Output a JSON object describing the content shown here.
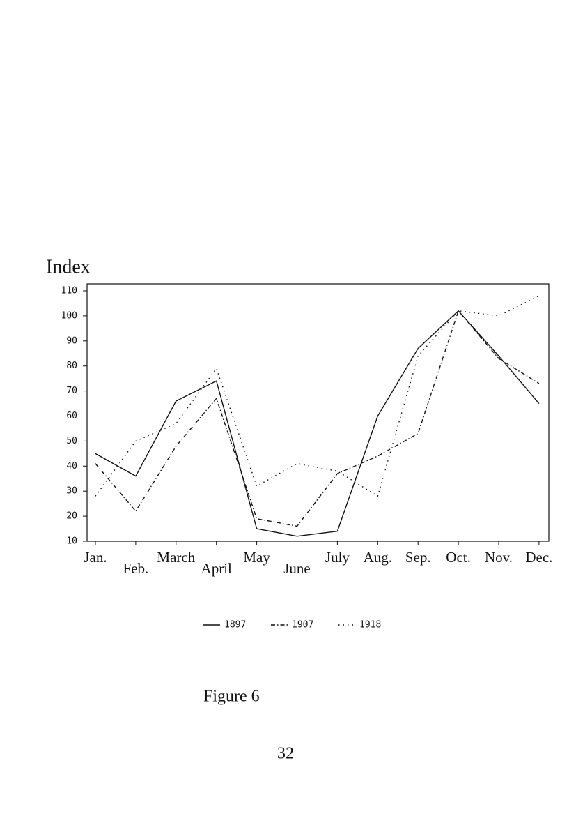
{
  "chart_data": {
    "type": "line",
    "ylabel": "Index",
    "categories": [
      "Jan.",
      "Feb.",
      "March",
      "April",
      "May",
      "June",
      "July",
      "Aug.",
      "Sep.",
      "Oct.",
      "Nov.",
      "Dec."
    ],
    "series": [
      {
        "name": "1897",
        "color": "#111111",
        "linestyle": "solid",
        "values": [
          45,
          36,
          66,
          74,
          15,
          12,
          14,
          60,
          87,
          102,
          84,
          65
        ]
      },
      {
        "name": "1907",
        "color": "#111111",
        "linestyle": "dashdot",
        "values": [
          41,
          22,
          48,
          67,
          19,
          16,
          37,
          44,
          53,
          102,
          83,
          73
        ]
      },
      {
        "name": "1918",
        "color": "#111111",
        "linestyle": "dotted",
        "values": [
          28,
          50,
          57,
          79,
          32,
          41,
          38,
          28,
          84,
          102,
          100,
          108
        ]
      }
    ],
    "ylim": [
      10,
      110
    ],
    "yticks": [
      10,
      20,
      30,
      40,
      50,
      60,
      70,
      80,
      90,
      100,
      110
    ],
    "legend": "bottom"
  },
  "caption": "Figure 6",
  "page_number": "32"
}
